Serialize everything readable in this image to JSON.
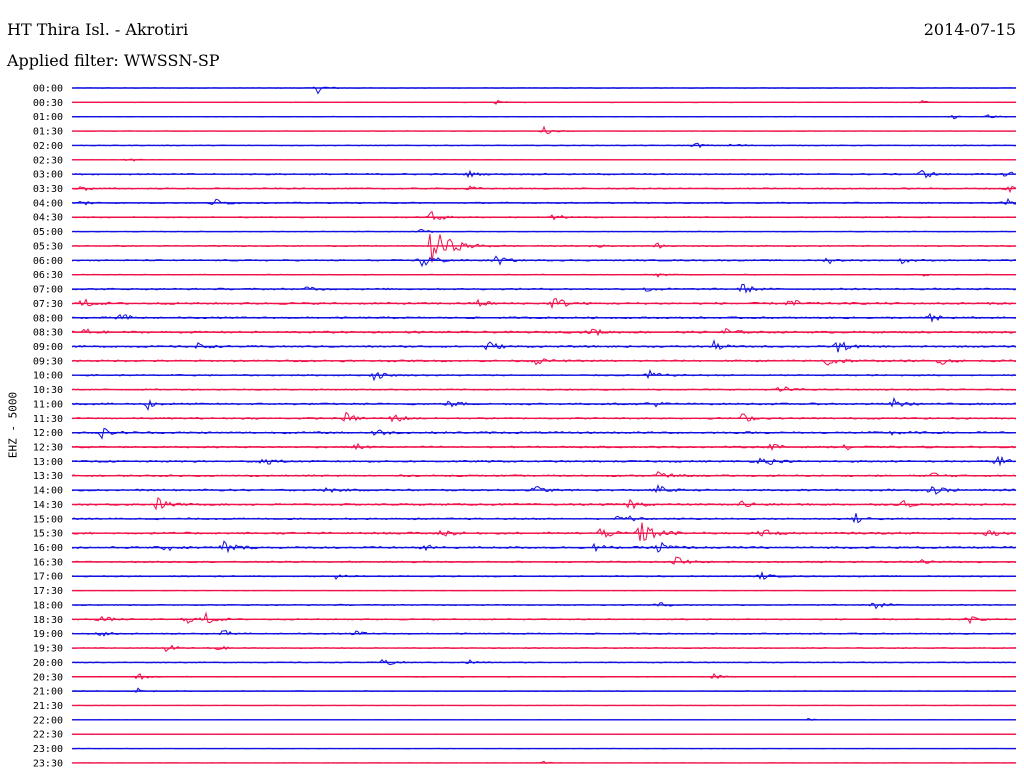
{
  "header": {
    "station": "HT Thira Isl. - Akrotiri",
    "date": "2014-07-15",
    "filter_label": "Applied filter: WWSSN-SP"
  },
  "colors": {
    "trace_a": "#1010e0",
    "trace_b": "#f0104a",
    "text": "#000000",
    "background": "#ffffff"
  },
  "chart_data": {
    "type": "line",
    "title": "HT Thira Isl. - Akrotiri",
    "date": "2014-07-15",
    "filter": "WWSSN-SP",
    "ylabel": "EHZ - 5000",
    "row_interval_minutes": 30,
    "row_colors_alternating": [
      "#1010e0",
      "#f0104a"
    ],
    "rows": [
      {
        "label": "00:00",
        "level": 0.2,
        "events": [
          {
            "t": 0.26,
            "amp": 1.0
          }
        ]
      },
      {
        "label": "00:30",
        "level": 0.15,
        "events": [
          {
            "t": 0.45,
            "amp": 0.4
          },
          {
            "t": 0.9,
            "amp": 0.3
          }
        ]
      },
      {
        "label": "01:00",
        "level": 0.2,
        "events": [
          {
            "t": 0.93,
            "amp": 0.6
          },
          {
            "t": 0.97,
            "amp": 0.5
          }
        ]
      },
      {
        "label": "01:30",
        "level": 0.15,
        "events": [
          {
            "t": 0.5,
            "amp": 0.8
          }
        ]
      },
      {
        "label": "02:00",
        "level": 0.25,
        "events": [
          {
            "t": 0.66,
            "amp": 0.6
          },
          {
            "t": 0.7,
            "amp": 0.7
          }
        ]
      },
      {
        "label": "02:30",
        "level": 0.15,
        "events": [
          {
            "t": 0.06,
            "amp": 0.5
          }
        ]
      },
      {
        "label": "03:00",
        "level": 0.45,
        "events": [
          {
            "t": 0.42,
            "amp": 0.6
          },
          {
            "t": 0.9,
            "amp": 1.0
          },
          {
            "t": 0.99,
            "amp": 1.0
          }
        ]
      },
      {
        "label": "03:30",
        "level": 0.4,
        "events": [
          {
            "t": 0.01,
            "amp": 0.6
          },
          {
            "t": 0.42,
            "amp": 0.5
          },
          {
            "t": 0.99,
            "amp": 0.9
          }
        ]
      },
      {
        "label": "04:00",
        "level": 0.4,
        "events": [
          {
            "t": 0.01,
            "amp": 0.6
          },
          {
            "t": 0.15,
            "amp": 1.0
          },
          {
            "t": 0.99,
            "amp": 0.8
          }
        ]
      },
      {
        "label": "04:30",
        "level": 0.35,
        "events": [
          {
            "t": 0.38,
            "amp": 1.2
          },
          {
            "t": 0.51,
            "amp": 0.7
          }
        ]
      },
      {
        "label": "05:00",
        "level": 0.2,
        "events": [
          {
            "t": 0.37,
            "amp": 0.6
          }
        ]
      },
      {
        "label": "05:30",
        "level": 0.35,
        "events": [
          {
            "t": 0.38,
            "amp": 3.5
          },
          {
            "t": 0.55,
            "amp": 0.6
          },
          {
            "t": 0.62,
            "amp": 0.5
          }
        ]
      },
      {
        "label": "06:00",
        "level": 0.45,
        "events": [
          {
            "t": 0.37,
            "amp": 1.8
          },
          {
            "t": 0.45,
            "amp": 1.0
          },
          {
            "t": 0.8,
            "amp": 0.7
          },
          {
            "t": 0.88,
            "amp": 0.7
          }
        ]
      },
      {
        "label": "06:30",
        "level": 0.25,
        "events": [
          {
            "t": 0.62,
            "amp": 0.5
          },
          {
            "t": 0.9,
            "amp": 0.4
          }
        ]
      },
      {
        "label": "07:00",
        "level": 0.5,
        "events": [
          {
            "t": 0.25,
            "amp": 0.7
          },
          {
            "t": 0.61,
            "amp": 0.8
          },
          {
            "t": 0.71,
            "amp": 1.0
          }
        ]
      },
      {
        "label": "07:30",
        "level": 0.6,
        "events": [
          {
            "t": 0.01,
            "amp": 1.0
          },
          {
            "t": 0.43,
            "amp": 0.8
          },
          {
            "t": 0.51,
            "amp": 1.4
          },
          {
            "t": 0.76,
            "amp": 1.0
          }
        ]
      },
      {
        "label": "08:00",
        "level": 0.55,
        "events": [
          {
            "t": 0.05,
            "amp": 1.0
          },
          {
            "t": 0.91,
            "amp": 1.0
          }
        ]
      },
      {
        "label": "08:30",
        "level": 0.6,
        "events": [
          {
            "t": 0.01,
            "amp": 1.0
          },
          {
            "t": 0.55,
            "amp": 0.9
          },
          {
            "t": 0.69,
            "amp": 1.0
          }
        ]
      },
      {
        "label": "09:00",
        "level": 0.55,
        "events": [
          {
            "t": 0.13,
            "amp": 0.9
          },
          {
            "t": 0.44,
            "amp": 1.1
          },
          {
            "t": 0.68,
            "amp": 0.9
          },
          {
            "t": 0.81,
            "amp": 1.3
          }
        ]
      },
      {
        "label": "09:30",
        "level": 0.55,
        "events": [
          {
            "t": 0.49,
            "amp": 0.8
          },
          {
            "t": 0.8,
            "amp": 1.4
          },
          {
            "t": 0.92,
            "amp": 0.8
          }
        ]
      },
      {
        "label": "10:00",
        "level": 0.45,
        "events": [
          {
            "t": 0.32,
            "amp": 1.0
          },
          {
            "t": 0.61,
            "amp": 1.0
          }
        ]
      },
      {
        "label": "10:30",
        "level": 0.4,
        "events": [
          {
            "t": 0.75,
            "amp": 0.9
          }
        ]
      },
      {
        "label": "11:00",
        "level": 0.55,
        "events": [
          {
            "t": 0.08,
            "amp": 1.0
          },
          {
            "t": 0.4,
            "amp": 0.9
          },
          {
            "t": 0.61,
            "amp": 1.0
          },
          {
            "t": 0.87,
            "amp": 1.0
          }
        ]
      },
      {
        "label": "11:30",
        "level": 0.5,
        "events": [
          {
            "t": 0.29,
            "amp": 1.0
          },
          {
            "t": 0.34,
            "amp": 1.0
          },
          {
            "t": 0.71,
            "amp": 0.9
          }
        ]
      },
      {
        "label": "12:00",
        "level": 0.6,
        "events": [
          {
            "t": 0.03,
            "amp": 1.1
          },
          {
            "t": 0.32,
            "amp": 0.9
          },
          {
            "t": 0.87,
            "amp": 0.7
          }
        ]
      },
      {
        "label": "12:30",
        "level": 0.5,
        "events": [
          {
            "t": 0.3,
            "amp": 0.7
          },
          {
            "t": 0.74,
            "amp": 0.8
          },
          {
            "t": 0.82,
            "amp": 0.8
          }
        ]
      },
      {
        "label": "13:00",
        "level": 0.55,
        "events": [
          {
            "t": 0.2,
            "amp": 1.0
          },
          {
            "t": 0.73,
            "amp": 1.2
          },
          {
            "t": 0.98,
            "amp": 1.2
          }
        ]
      },
      {
        "label": "13:30",
        "level": 0.5,
        "events": [
          {
            "t": 0.62,
            "amp": 1.1
          },
          {
            "t": 0.91,
            "amp": 1.0
          }
        ]
      },
      {
        "label": "14:00",
        "level": 0.55,
        "events": [
          {
            "t": 0.27,
            "amp": 0.7
          },
          {
            "t": 0.49,
            "amp": 0.9
          },
          {
            "t": 0.62,
            "amp": 1.0
          },
          {
            "t": 0.91,
            "amp": 1.2
          }
        ]
      },
      {
        "label": "14:30",
        "level": 0.55,
        "events": [
          {
            "t": 0.09,
            "amp": 1.3
          },
          {
            "t": 0.59,
            "amp": 1.1
          },
          {
            "t": 0.71,
            "amp": 1.0
          },
          {
            "t": 0.88,
            "amp": 0.8
          }
        ]
      },
      {
        "label": "15:00",
        "level": 0.5,
        "events": [
          {
            "t": 0.58,
            "amp": 1.3
          },
          {
            "t": 0.83,
            "amp": 1.0
          }
        ]
      },
      {
        "label": "15:30",
        "level": 0.6,
        "events": [
          {
            "t": 0.39,
            "amp": 1.0
          },
          {
            "t": 0.56,
            "amp": 1.2
          },
          {
            "t": 0.6,
            "amp": 2.4
          },
          {
            "t": 0.73,
            "amp": 1.1
          },
          {
            "t": 0.97,
            "amp": 0.8
          }
        ]
      },
      {
        "label": "16:00",
        "level": 0.6,
        "events": [
          {
            "t": 0.1,
            "amp": 0.9
          },
          {
            "t": 0.16,
            "amp": 1.4
          },
          {
            "t": 0.37,
            "amp": 0.8
          },
          {
            "t": 0.55,
            "amp": 1.0
          },
          {
            "t": 0.62,
            "amp": 1.4
          }
        ]
      },
      {
        "label": "16:30",
        "level": 0.45,
        "events": [
          {
            "t": 0.64,
            "amp": 1.1
          },
          {
            "t": 0.9,
            "amp": 0.6
          }
        ]
      },
      {
        "label": "17:00",
        "level": 0.4,
        "events": [
          {
            "t": 0.28,
            "amp": 0.6
          },
          {
            "t": 0.73,
            "amp": 0.7
          }
        ]
      },
      {
        "label": "17:30",
        "level": 0.1,
        "events": []
      },
      {
        "label": "18:00",
        "level": 0.35,
        "events": [
          {
            "t": 0.62,
            "amp": 0.7
          },
          {
            "t": 0.85,
            "amp": 0.9
          }
        ]
      },
      {
        "label": "18:30",
        "level": 0.4,
        "events": [
          {
            "t": 0.03,
            "amp": 0.8
          },
          {
            "t": 0.12,
            "amp": 0.9
          },
          {
            "t": 0.14,
            "amp": 1.2
          },
          {
            "t": 0.95,
            "amp": 0.7
          }
        ]
      },
      {
        "label": "19:00",
        "level": 0.4,
        "events": [
          {
            "t": 0.03,
            "amp": 0.7
          },
          {
            "t": 0.16,
            "amp": 0.7
          },
          {
            "t": 0.3,
            "amp": 0.6
          }
        ]
      },
      {
        "label": "19:30",
        "level": 0.3,
        "events": [
          {
            "t": 0.1,
            "amp": 0.8
          },
          {
            "t": 0.15,
            "amp": 0.8
          }
        ]
      },
      {
        "label": "20:00",
        "level": 0.3,
        "events": [
          {
            "t": 0.33,
            "amp": 1.0
          },
          {
            "t": 0.42,
            "amp": 0.6
          }
        ]
      },
      {
        "label": "20:30",
        "level": 0.25,
        "events": [
          {
            "t": 0.07,
            "amp": 0.7
          },
          {
            "t": 0.68,
            "amp": 0.6
          }
        ]
      },
      {
        "label": "21:00",
        "level": 0.25,
        "events": [
          {
            "t": 0.07,
            "amp": 0.6
          }
        ]
      },
      {
        "label": "21:30",
        "level": 0.1,
        "events": []
      },
      {
        "label": "22:00",
        "level": 0.1,
        "events": [
          {
            "t": 0.78,
            "amp": 0.3
          }
        ]
      },
      {
        "label": "22:30",
        "level": 0.1,
        "events": []
      },
      {
        "label": "23:00",
        "level": 0.1,
        "events": []
      },
      {
        "label": "23:30",
        "level": 0.1,
        "events": [
          {
            "t": 0.5,
            "amp": 0.3
          }
        ]
      }
    ]
  }
}
